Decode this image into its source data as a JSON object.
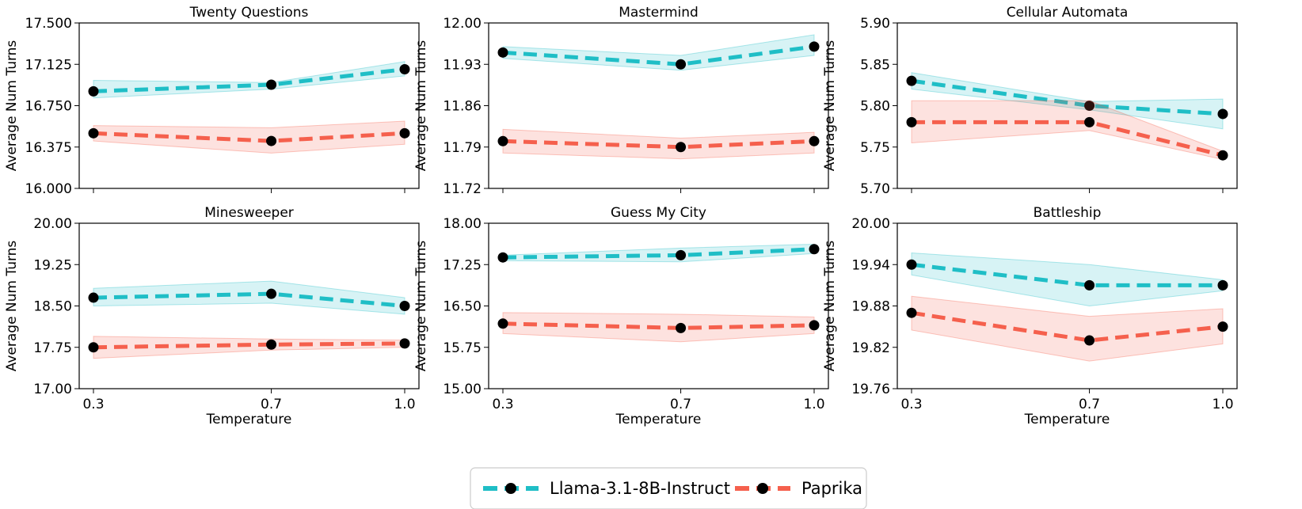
{
  "colors": {
    "llama": "#1fbec6",
    "paprika": "#f5604d",
    "marker": "#000000"
  },
  "legend": {
    "llama": "Llama-3.1-8B-Instruct",
    "paprika": "Paprika"
  },
  "chart_data": [
    {
      "type": "line",
      "title": "Twenty Questions",
      "xlabel": "",
      "ylabel": "Average Num Turns",
      "x": [
        0.3,
        0.7,
        1.0
      ],
      "xticks": [
        "0.3",
        "0.7",
        "1.0"
      ],
      "ylim": [
        16.0,
        17.5
      ],
      "yticks": [
        "16.000",
        "16.375",
        "16.750",
        "17.125",
        "17.500"
      ],
      "series": [
        {
          "name": "Llama-3.1-8B-Instruct",
          "values": [
            16.88,
            16.94,
            17.08
          ],
          "lower": [
            16.82,
            16.9,
            17.02
          ],
          "upper": [
            16.98,
            16.96,
            17.15
          ]
        },
        {
          "name": "Paprika",
          "values": [
            16.5,
            16.43,
            16.5
          ],
          "lower": [
            16.43,
            16.32,
            16.4
          ],
          "upper": [
            16.57,
            16.55,
            16.61
          ]
        }
      ]
    },
    {
      "type": "line",
      "title": "Mastermind",
      "xlabel": "",
      "ylabel": "Average Num Turns",
      "x": [
        0.3,
        0.7,
        1.0
      ],
      "xticks": [
        "0.3",
        "0.7",
        "1.0"
      ],
      "ylim": [
        11.72,
        12.0
      ],
      "yticks": [
        "11.72",
        "11.79",
        "11.86",
        "11.93",
        "12.00"
      ],
      "series": [
        {
          "name": "Llama-3.1-8B-Instruct",
          "values": [
            11.95,
            11.93,
            11.96
          ],
          "lower": [
            11.94,
            11.92,
            11.945
          ],
          "upper": [
            11.96,
            11.945,
            11.98
          ]
        },
        {
          "name": "Paprika",
          "values": [
            11.8,
            11.79,
            11.8
          ],
          "lower": [
            11.78,
            11.77,
            11.78
          ],
          "upper": [
            11.82,
            11.805,
            11.815
          ]
        }
      ]
    },
    {
      "type": "line",
      "title": "Cellular Automata",
      "xlabel": "",
      "ylabel": "Average Num Turns",
      "x": [
        0.3,
        0.7,
        1.0
      ],
      "xticks": [
        "0.3",
        "0.7",
        "1.0"
      ],
      "ylim": [
        5.7,
        5.9
      ],
      "yticks": [
        "5.70",
        "5.75",
        "5.80",
        "5.85",
        "5.90"
      ],
      "series": [
        {
          "name": "Llama-3.1-8B-Instruct",
          "values": [
            5.83,
            5.8,
            5.79
          ],
          "lower": [
            5.82,
            5.795,
            5.772
          ],
          "upper": [
            5.84,
            5.805,
            5.808
          ]
        },
        {
          "name": "Paprika",
          "values": [
            5.78,
            5.78,
            5.74
          ],
          "lower": [
            5.755,
            5.77,
            5.735
          ],
          "upper": [
            5.806,
            5.806,
            5.745
          ]
        }
      ]
    },
    {
      "type": "line",
      "title": "Minesweeper",
      "xlabel": "Temperature",
      "ylabel": "Average Num Turns",
      "x": [
        0.3,
        0.7,
        1.0
      ],
      "xticks": [
        "0.3",
        "0.7",
        "1.0"
      ],
      "ylim": [
        17.0,
        20.0
      ],
      "yticks": [
        "17.00",
        "17.75",
        "18.50",
        "19.25",
        "20.00"
      ],
      "series": [
        {
          "name": "Llama-3.1-8B-Instruct",
          "values": [
            18.65,
            18.72,
            18.5
          ],
          "lower": [
            18.5,
            18.55,
            18.35
          ],
          "upper": [
            18.82,
            18.95,
            18.65
          ]
        },
        {
          "name": "Paprika",
          "values": [
            17.75,
            17.8,
            17.82
          ],
          "lower": [
            17.55,
            17.7,
            17.75
          ],
          "upper": [
            17.95,
            17.9,
            17.88
          ]
        }
      ]
    },
    {
      "type": "line",
      "title": "Guess My City",
      "xlabel": "Temperature",
      "ylabel": "Average Num Turns",
      "x": [
        0.3,
        0.7,
        1.0
      ],
      "xticks": [
        "0.3",
        "0.7",
        "1.0"
      ],
      "ylim": [
        15.0,
        18.0
      ],
      "yticks": [
        "15.00",
        "15.75",
        "16.50",
        "17.25",
        "18.00"
      ],
      "series": [
        {
          "name": "Llama-3.1-8B-Instruct",
          "values": [
            17.38,
            17.42,
            17.53
          ],
          "lower": [
            17.32,
            17.3,
            17.45
          ],
          "upper": [
            17.42,
            17.55,
            17.62
          ]
        },
        {
          "name": "Paprika",
          "values": [
            16.18,
            16.1,
            16.15
          ],
          "lower": [
            16.0,
            15.85,
            16.0
          ],
          "upper": [
            16.38,
            16.35,
            16.3
          ]
        }
      ]
    },
    {
      "type": "line",
      "title": "Battleship",
      "xlabel": "Temperature",
      "ylabel": "Average Num Turns",
      "x": [
        0.3,
        0.7,
        1.0
      ],
      "xticks": [
        "0.3",
        "0.7",
        "1.0"
      ],
      "ylim": [
        19.76,
        20.0
      ],
      "yticks": [
        "19.76",
        "19.82",
        "19.88",
        "19.94",
        "20.00"
      ],
      "series": [
        {
          "name": "Llama-3.1-8B-Instruct",
          "values": [
            19.94,
            19.91,
            19.91
          ],
          "lower": [
            19.925,
            19.88,
            19.902
          ],
          "upper": [
            19.957,
            19.94,
            19.918
          ]
        },
        {
          "name": "Paprika",
          "values": [
            19.87,
            19.83,
            19.85
          ],
          "lower": [
            19.845,
            19.8,
            19.825
          ],
          "upper": [
            19.894,
            19.865,
            19.876
          ]
        }
      ]
    }
  ]
}
